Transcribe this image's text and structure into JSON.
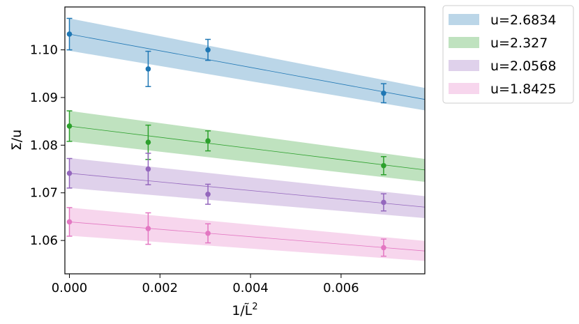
{
  "chart_data": {
    "type": "line",
    "xlabel": "1/L̃",
    "xlabel_sup": "2",
    "ylabel": "Σ/u",
    "xlim": [
      -0.0001,
      0.00785
    ],
    "ylim": [
      1.053,
      1.109
    ],
    "xticks": [
      0.0,
      0.002,
      0.004,
      0.006
    ],
    "xtick_labels": [
      "0.000",
      "0.002",
      "0.004",
      "0.006"
    ],
    "yticks": [
      1.06,
      1.07,
      1.08,
      1.09,
      1.1
    ],
    "ytick_labels": [
      "1.06",
      "1.07",
      "1.08",
      "1.09",
      "1.10"
    ],
    "legend_position": "outside-top-right",
    "series": [
      {
        "name": "u=2.6834",
        "color": "#1f77b4",
        "points": [
          {
            "x": 0.0,
            "y": 1.1033,
            "err": 0.0033
          },
          {
            "x": 0.00174,
            "y": 1.096,
            "err": 0.0037
          },
          {
            "x": 0.00306,
            "y": 1.1,
            "err": 0.0022
          },
          {
            "x": 0.00694,
            "y": 1.0909,
            "err": 0.002
          }
        ],
        "fit": {
          "x": [
            0.0,
            0.00785
          ],
          "y": [
            1.1033,
            1.0896
          ],
          "band_low": [
            1.0998,
            1.0873
          ],
          "band_high": [
            1.1066,
            1.092
          ]
        }
      },
      {
        "name": "u=2.327",
        "color": "#2ca02c",
        "points": [
          {
            "x": 0.0,
            "y": 1.084,
            "err": 0.0032
          },
          {
            "x": 0.00174,
            "y": 1.0806,
            "err": 0.0036
          },
          {
            "x": 0.00306,
            "y": 1.0809,
            "err": 0.0021
          },
          {
            "x": 0.00694,
            "y": 1.0757,
            "err": 0.0019
          }
        ],
        "fit": {
          "x": [
            0.0,
            0.00785
          ],
          "y": [
            1.084,
            1.0748
          ],
          "band_low": [
            1.0808,
            1.0723
          ],
          "band_high": [
            1.0872,
            1.0771
          ]
        }
      },
      {
        "name": "u=2.0568",
        "color": "#9467bd",
        "points": [
          {
            "x": 0.0,
            "y": 1.0741,
            "err": 0.0031
          },
          {
            "x": 0.00174,
            "y": 1.075,
            "err": 0.0033
          },
          {
            "x": 0.00306,
            "y": 1.0697,
            "err": 0.0021
          },
          {
            "x": 0.00694,
            "y": 1.068,
            "err": 0.0018
          }
        ],
        "fit": {
          "x": [
            0.0,
            0.00785
          ],
          "y": [
            1.0741,
            1.067
          ],
          "band_low": [
            1.071,
            1.0647
          ],
          "band_high": [
            1.0773,
            1.0693
          ]
        }
      },
      {
        "name": "u=1.8425",
        "color": "#e377c2",
        "points": [
          {
            "x": 0.0,
            "y": 1.0639,
            "err": 0.003
          },
          {
            "x": 0.00174,
            "y": 1.0625,
            "err": 0.0033
          },
          {
            "x": 0.00306,
            "y": 1.0615,
            "err": 0.002
          },
          {
            "x": 0.00694,
            "y": 1.0585,
            "err": 0.0018
          }
        ],
        "fit": {
          "x": [
            0.0,
            0.00785
          ],
          "y": [
            1.0639,
            1.0578
          ],
          "band_low": [
            1.061,
            1.0557
          ],
          "band_high": [
            1.0669,
            1.0599
          ]
        }
      }
    ]
  }
}
